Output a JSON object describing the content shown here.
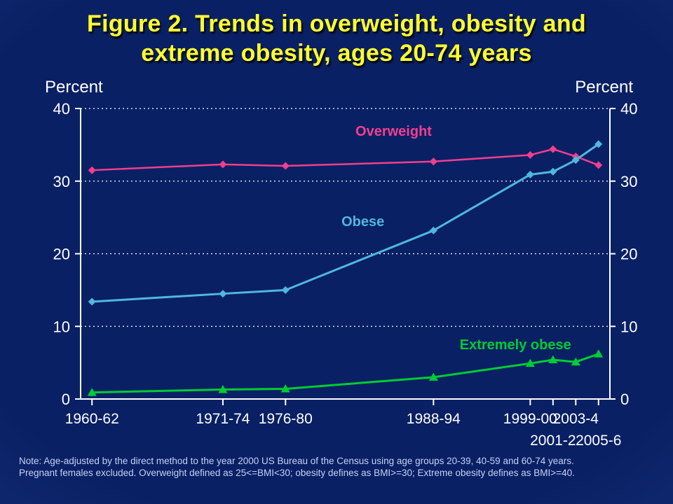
{
  "title": {
    "line1": "Figure 2. Trends in overweight, obesity and",
    "line2": "extreme obesity, ages 20-74 years"
  },
  "axis_headers": {
    "left": "Percent",
    "right": "Percent"
  },
  "note": {
    "line1": "Note: Age-adjusted by the direct method to the year 2000 US Bureau of the Census using age groups 20-39, 40-59 and 60-74 years.",
    "line2": "Pregnant females excluded. Overweight defined as 25<=BMI<30; obesity defines as BMI>=30; Extreme obesity defines as BMI>=40."
  },
  "colors": {
    "background_center": "#0a2064",
    "background_edge": "#3d63b6",
    "title": "#ffff2e",
    "axis": "#ffffff",
    "note_text": "#c5d1f6",
    "overweight": "#f23e8e",
    "obese": "#4fb8dc",
    "extremely_obese": "#00cc33"
  },
  "chart_data": {
    "type": "line",
    "title": "Figure 2. Trends in overweight, obesity and extreme obesity, ages 20-74 years",
    "ylabel": "Percent",
    "ylim": [
      0,
      40
    ],
    "y_ticks": [
      0,
      10,
      20,
      30,
      40
    ],
    "grid": "dotted-horizontal",
    "legend": "inline-series-labels",
    "x_domain": [
      1960,
      2006.5
    ],
    "x_years": [
      1961,
      1972.5,
      1978,
      1991,
      1999.5,
      2001.5,
      2003.5,
      2005.5
    ],
    "x_tick_labels": [
      {
        "text": "1960-62",
        "year": 1961,
        "row": 1
      },
      {
        "text": "1971-74",
        "year": 1972.5,
        "row": 1
      },
      {
        "text": "1976-80",
        "year": 1978,
        "row": 1
      },
      {
        "text": "1988-94",
        "year": 1991,
        "row": 1
      },
      {
        "text": "1999-00",
        "year": 1999.5,
        "row": 1
      },
      {
        "text": "2001-2",
        "year": 2001.5,
        "row": 2
      },
      {
        "text": "2003-4",
        "year": 2003.5,
        "row": 1
      },
      {
        "text": "2005-6",
        "year": 2005.5,
        "row": 2
      }
    ],
    "series": [
      {
        "name": "Overweight",
        "color": "#f23e8e",
        "marker": "diamond",
        "line_width": 2.5,
        "values": [
          31.5,
          32.3,
          32.1,
          32.7,
          33.6,
          34.4,
          33.4,
          32.2
        ],
        "label_pos": {
          "year": 1987.5,
          "value": 36.9
        }
      },
      {
        "name": "Obese",
        "color": "#4fb8dc",
        "marker": "diamond",
        "line_width": 3,
        "values": [
          13.4,
          14.5,
          15.0,
          23.2,
          30.9,
          31.3,
          32.9,
          35.1
        ],
        "label_pos": {
          "year": 1984.8,
          "value": 24.5
        }
      },
      {
        "name": "Extremely obese",
        "color": "#00cc33",
        "marker": "triangle",
        "line_width": 3,
        "values": [
          0.9,
          1.3,
          1.4,
          3.0,
          4.9,
          5.4,
          5.1,
          6.2
        ],
        "label_pos": {
          "year": 1998.2,
          "value": 7.5
        }
      }
    ]
  }
}
